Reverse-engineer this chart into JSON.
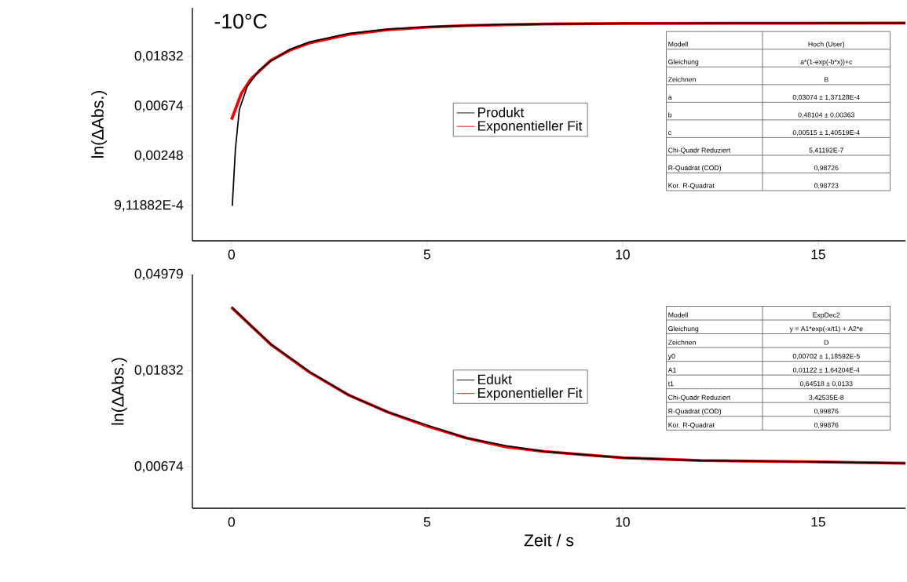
{
  "chart_data": [
    {
      "type": "line",
      "title": "-10°C",
      "ylabel": "ln(ΔAbs.)",
      "log": "y",
      "legend": "center",
      "xlim": [
        -1,
        17.23
      ],
      "xticks": [
        0,
        5,
        10,
        15
      ],
      "ylim": [
        0.00045,
        0.0488
      ],
      "yticks": [
        {
          "value": 0.000911882,
          "label": "9,11882E-4"
        },
        {
          "value": 0.00248,
          "label": "0,00248"
        },
        {
          "value": 0.00674,
          "label": "0,00674"
        },
        {
          "value": 0.01832,
          "label": "0,01832"
        }
      ],
      "series": [
        {
          "name": "Produkt",
          "color": "#000000",
          "x": [
            0.02,
            0.1,
            0.2,
            0.4,
            0.7,
            1,
            1.5,
            2,
            3,
            4,
            5,
            7,
            10,
            13,
            17.23
          ],
          "values": [
            0.00091,
            0.00285,
            0.0063,
            0.01,
            0.0138,
            0.0167,
            0.0212,
            0.0246,
            0.0292,
            0.0318,
            0.0333,
            0.035,
            0.0357,
            0.0359,
            0.036
          ]
        },
        {
          "name": "Exponentieller Fit",
          "color": "#ff0000",
          "x": [
            0,
            0.25,
            0.5,
            1,
            1.5,
            2,
            3,
            4,
            5,
            6,
            8,
            10,
            13,
            17.23
          ],
          "values": [
            0.00515,
            0.0087,
            0.0117,
            0.0169,
            0.0209,
            0.0241,
            0.0286,
            0.0314,
            0.0331,
            0.0342,
            0.0352,
            0.0357,
            0.0358,
            0.0359
          ]
        }
      ],
      "annotations": [
        "Modell",
        "Hoch (User)",
        "Gleichung",
        "a*(1-exp(-b*x))+c",
        "Zeichnen",
        "B",
        "a",
        "0,03074 ± 1,37128E-4",
        "b",
        "0,48104 ± 0,00363",
        "c",
        "0,00515 ± 1,40519E-4",
        "Chi-Quadr Reduziert",
        "5,41192E-7",
        "R-Quadrat (COD)",
        "0,98726",
        "Kor. R-Quadrat",
        "0,98723"
      ]
    },
    {
      "type": "line",
      "xlabel": "Zeit / s",
      "ylabel": "ln(ΔAbs.)",
      "log": "y",
      "legend": "center",
      "xlim": [
        -1,
        17.23
      ],
      "xticks": [
        0,
        5,
        10,
        15
      ],
      "ylim": [
        0.00438,
        0.04979
      ],
      "yticks": [
        {
          "value": 0.00674,
          "label": "0,00674"
        },
        {
          "value": 0.01832,
          "label": "0,01832"
        },
        {
          "value": 0.04979,
          "label": "0,04979"
        }
      ],
      "series": [
        {
          "name": "Edukt",
          "color": "#000000",
          "x": [
            0,
            0.5,
            1,
            2,
            3,
            4,
            5,
            6,
            7,
            8,
            10,
            12,
            15,
            17.23
          ],
          "values": [
            0.0355,
            0.0293,
            0.0242,
            0.0181,
            0.0142,
            0.0119,
            0.0104,
            0.0091,
            0.0084,
            0.0079,
            0.0074,
            0.0072,
            0.0071,
            0.007
          ]
        },
        {
          "name": "Exponentieller Fit",
          "color": "#ff0000",
          "x": [
            0,
            0.5,
            1,
            2,
            3,
            4,
            5,
            6,
            7,
            8,
            10,
            12,
            15,
            17.23
          ],
          "values": [
            0.0354,
            0.0292,
            0.0241,
            0.018,
            0.0142,
            0.0119,
            0.0103,
            0.0091,
            0.0083,
            0.0079,
            0.0074,
            0.0072,
            0.0071,
            0.007
          ]
        }
      ],
      "annotations": [
        "Modell",
        "ExpDec2",
        "Gleichung",
        "y = A1*exp(-x/t1) + A2*e",
        "Zeichnen",
        "D",
        "y0",
        "0,00702 ± 1,18592E-5",
        "A1",
        "0,01122 ± 1,64204E-4",
        "t1",
        "0,64518 ± 0,0133",
        "Chi-Quadr Reduziert",
        "3,42535E-8",
        "R-Quadrat (COD)",
        "0,99876",
        "Kor. R-Quadrat",
        "0,99876"
      ]
    }
  ]
}
